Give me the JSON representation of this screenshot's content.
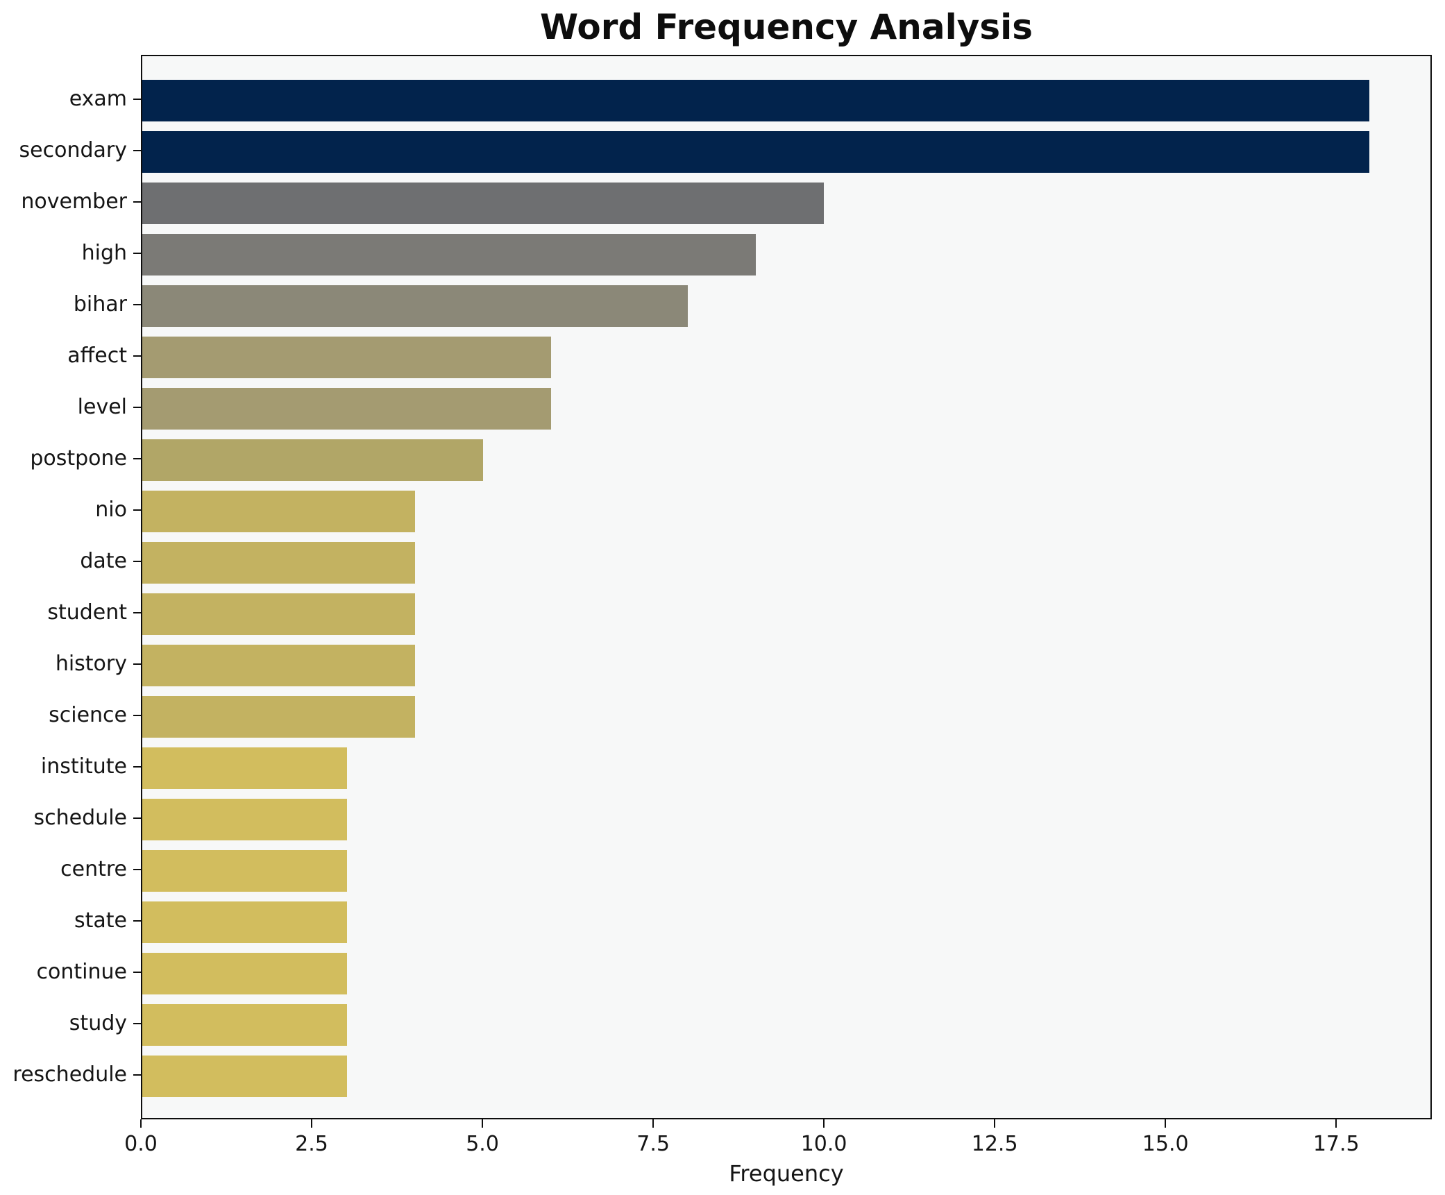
{
  "chart_data": {
    "type": "bar",
    "orientation": "horizontal",
    "title": "Word Frequency Analysis",
    "xlabel": "Frequency",
    "ylabel": "",
    "categories": [
      "exam",
      "secondary",
      "november",
      "high",
      "bihar",
      "affect",
      "level",
      "postpone",
      "nio",
      "date",
      "student",
      "history",
      "science",
      "institute",
      "schedule",
      "centre",
      "state",
      "continue",
      "study",
      "reschedule"
    ],
    "values": [
      18,
      18,
      10,
      9,
      8,
      6,
      6,
      5,
      4,
      4,
      4,
      4,
      4,
      3,
      3,
      3,
      3,
      3,
      3,
      3
    ],
    "bar_colors": [
      "#02234c",
      "#02234c",
      "#6e6f71",
      "#7b7a76",
      "#8b8878",
      "#a49b71",
      "#a49b71",
      "#b1a667",
      "#c3b261",
      "#c3b261",
      "#c3b261",
      "#c3b261",
      "#c3b261",
      "#d2bd5e",
      "#d2bd5e",
      "#d2bd5e",
      "#d2bd5e",
      "#d2bd5e",
      "#d2bd5e",
      "#d2bd5e"
    ],
    "xlim": [
      0,
      18.9
    ],
    "xtick_values": [
      0,
      2.5,
      5,
      7.5,
      10,
      12.5,
      15,
      17.5
    ],
    "xtick_labels": [
      "0.0",
      "2.5",
      "5.0",
      "7.5",
      "10.0",
      "12.5",
      "15.0",
      "17.5"
    ],
    "grid": false,
    "legend": null,
    "colors": {
      "figure_bg": "#ffffff",
      "plot_bg": "#f7f8f8",
      "spine": "#0e0e0e",
      "text": "#151515"
    }
  }
}
